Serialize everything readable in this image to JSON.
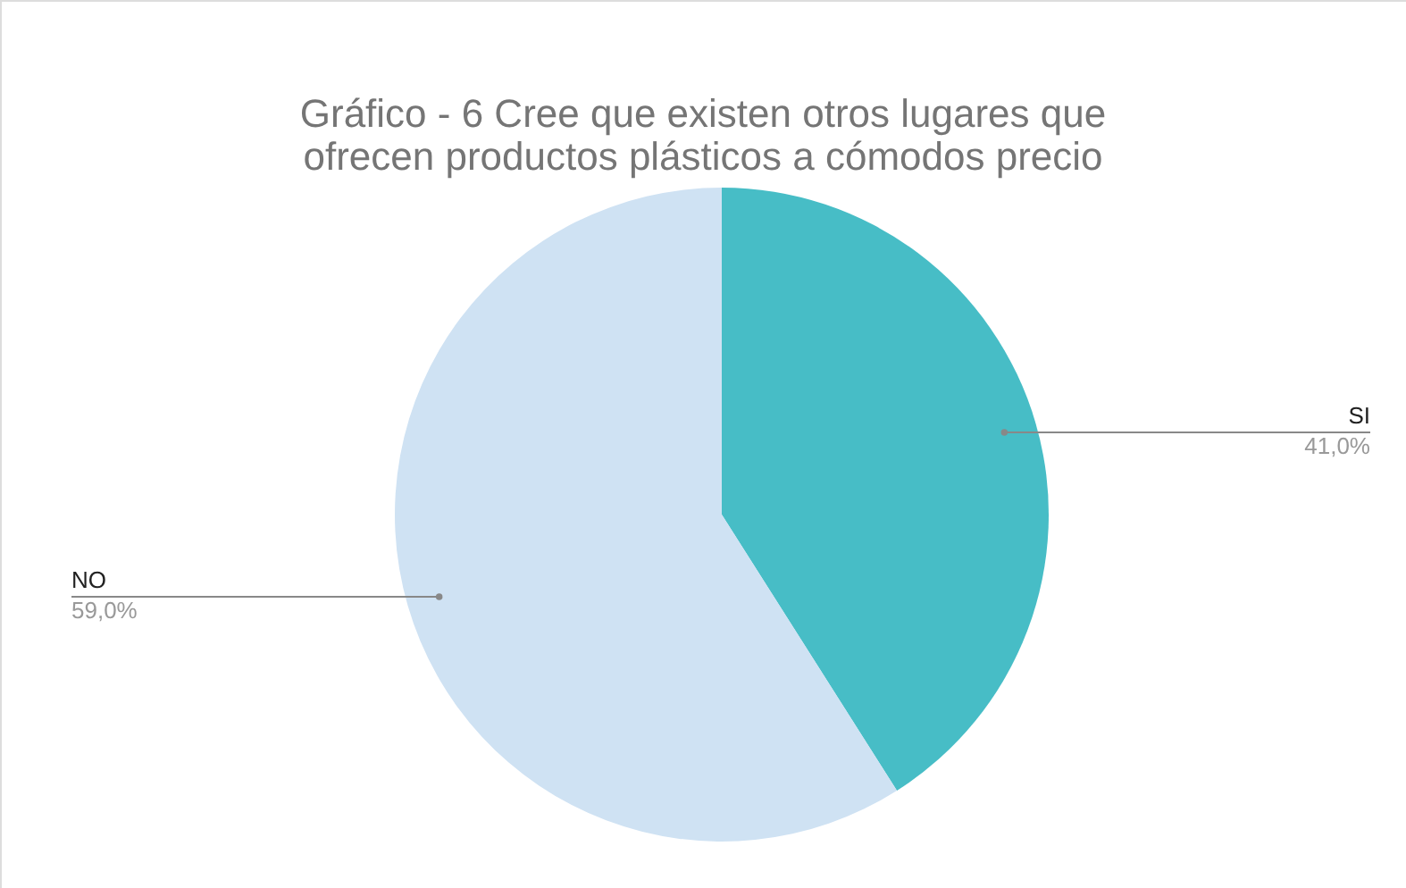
{
  "chart_data": {
    "type": "pie",
    "title": "Gráfico -  6 Cree que existen otros lugares que ofrecen productos plásticos a cómodos precio",
    "categories": [
      "SI",
      "NO"
    ],
    "values": [
      41.0,
      59.0
    ],
    "colors": [
      "#47bdc6",
      "#cfe2f3"
    ],
    "value_labels": [
      "41,0%",
      "59,0%"
    ]
  }
}
